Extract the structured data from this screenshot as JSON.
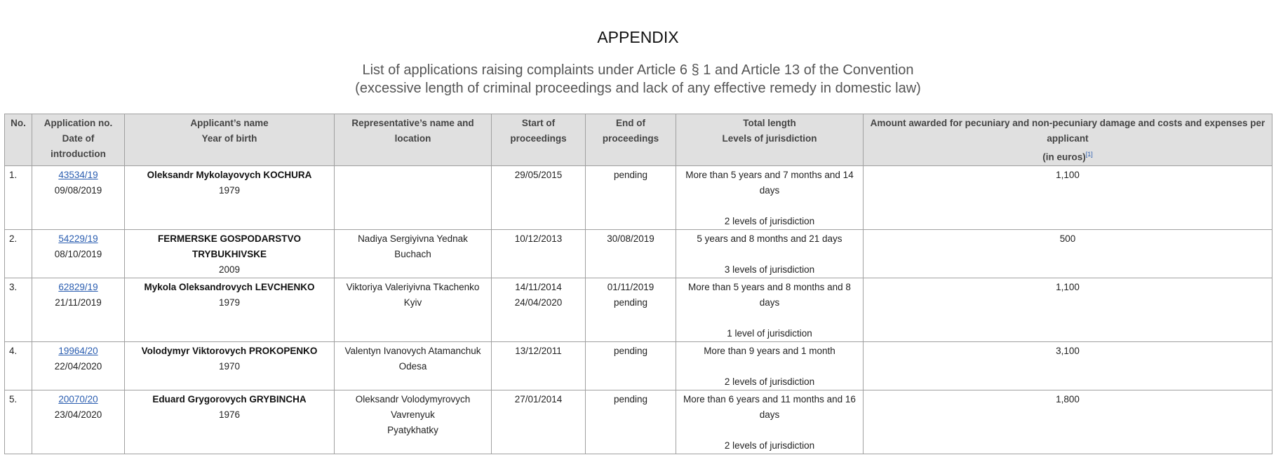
{
  "title": "APPENDIX",
  "subtitle": [
    "List of applications raising complaints under Article 6 § 1 and Article 13 of the Convention",
    "(excessive length of criminal proceedings and lack of any effective remedy in domestic law)"
  ],
  "colors": {
    "link": "#2a5db0",
    "header_bg": "#e0e0e0",
    "border": "#a0a0a0"
  },
  "columns": [
    [
      "No."
    ],
    [
      "Application no.",
      "Date of introduction"
    ],
    [
      "Applicant’s name",
      "Year of birth"
    ],
    [
      "Representative’s name and location"
    ],
    [
      "Start of proceedings"
    ],
    [
      "End of proceedings"
    ],
    [
      "Total length",
      "Levels of jurisdiction"
    ],
    [
      "Amount awarded for pecuniary and non-pecuniary damage and costs and expenses per applicant",
      "(in euros)"
    ]
  ],
  "footnote_ref": "[1]",
  "rows": [
    {
      "no": "1.",
      "app_no": "43534/19",
      "intro": "09/08/2019",
      "applicant": [
        "Oleksandr Mykolayovych KOCHURA"
      ],
      "birth": "1979",
      "representative": [],
      "start": [
        "29/05/2015"
      ],
      "end": [
        "pending"
      ],
      "length": [
        "More than 5 years and 7 months and 14 days",
        "",
        "2 levels of jurisdiction"
      ],
      "amount": "1,100"
    },
    {
      "no": "2.",
      "app_no": "54229/19",
      "intro": "08/10/2019",
      "applicant": [
        "FERMERSKE GOSPODARSTVO TRYBUKHIVSKE"
      ],
      "birth": "2009",
      "representative": [
        "Nadiya Sergiyivna Yednak",
        "Buchach"
      ],
      "start": [
        "10/12/2013"
      ],
      "end": [
        "30/08/2019"
      ],
      "length": [
        "5 years and 8 months and 21 days",
        "",
        "3 levels of jurisdiction"
      ],
      "amount": "500"
    },
    {
      "no": "3.",
      "app_no": "62829/19",
      "intro": "21/11/2019",
      "applicant": [
        "Mykola Oleksandrovych LEVCHENKO"
      ],
      "birth": "1979",
      "representative": [
        "Viktoriya Valeriyivna Tkachenko",
        "Kyiv"
      ],
      "start": [
        "14/11/2014",
        "24/04/2020"
      ],
      "end": [
        "01/11/2019",
        "pending"
      ],
      "length": [
        "More than 5 years and 8 months and 8 days",
        "",
        "1 level of jurisdiction"
      ],
      "amount": "1,100"
    },
    {
      "no": "4.",
      "app_no": "19964/20",
      "intro": "22/04/2020",
      "applicant": [
        "Volodymyr Viktorovych PROKOPENKO"
      ],
      "birth": "1970",
      "representative": [
        "Valentyn Ivanovych Atamanchuk",
        "Odesa"
      ],
      "start": [
        "13/12/2011"
      ],
      "end": [
        "pending"
      ],
      "length": [
        "More than 9 years and 1 month",
        "",
        "2 levels of jurisdiction"
      ],
      "amount": "3,100"
    },
    {
      "no": "5.",
      "app_no": "20070/20",
      "intro": "23/04/2020",
      "applicant": [
        "Eduard Grygorovych GRYBINCHA"
      ],
      "birth": "1976",
      "representative": [
        "Oleksandr Volodymyrovych Vavrenyuk",
        "Pyatykhatky"
      ],
      "start": [
        "27/01/2014"
      ],
      "end": [
        "pending"
      ],
      "length": [
        "More than 6 years and 11 months and 16 days",
        "",
        "2 levels of jurisdiction"
      ],
      "amount": "1,800"
    }
  ]
}
